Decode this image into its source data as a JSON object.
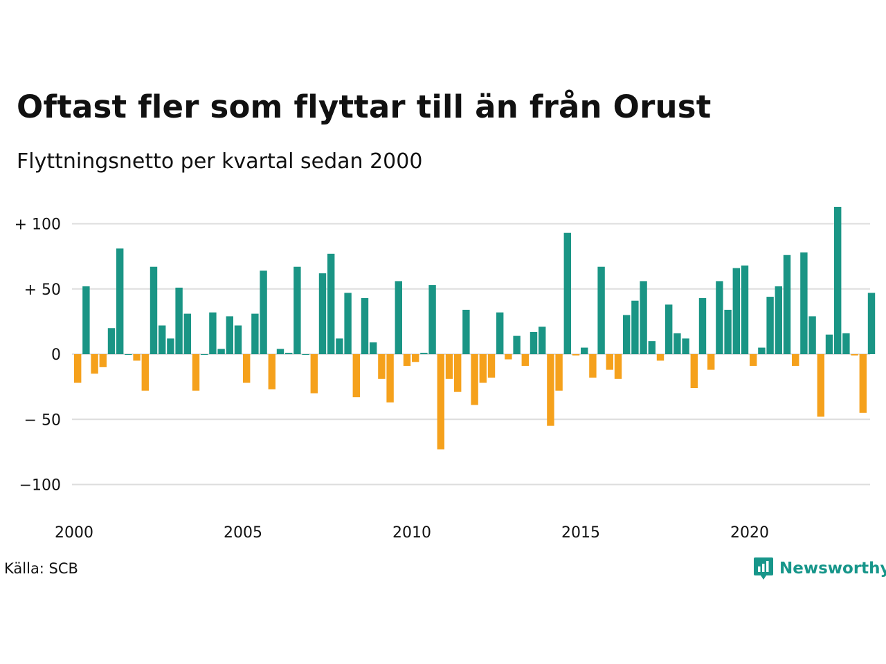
{
  "chart_data": {
    "type": "bar",
    "title": "Oftast fler som flyttar till än från Orust",
    "subtitle": "Flyttningsnetto per kvartal sedan 2000",
    "source": "Källa: SCB",
    "y_ticks": [
      {
        "value": 100,
        "label": "+ 100"
      },
      {
        "value": 50,
        "label": "+  50"
      },
      {
        "value": 0,
        "label": "0"
      },
      {
        "value": -50,
        "label": "− 50"
      },
      {
        "value": -100,
        "label": "−100"
      }
    ],
    "x_ticks": [
      "2000",
      "2005",
      "2010",
      "2015",
      "2020"
    ],
    "ylim": [
      -100,
      100
    ],
    "grid": true,
    "start_year": 2000,
    "colors": {
      "positive": "#1a9585",
      "negative": "#f5a11c",
      "grid": "#dddddd"
    },
    "values": [
      -22,
      52,
      -15,
      -10,
      20,
      81,
      0,
      -5,
      -28,
      67,
      22,
      12,
      51,
      31,
      -28,
      0,
      32,
      4,
      29,
      22,
      -22,
      31,
      64,
      -27,
      4,
      1,
      67,
      0,
      -30,
      62,
      77,
      12,
      47,
      -33,
      43,
      9,
      -19,
      -37,
      56,
      -9,
      -6,
      1,
      53,
      -73,
      -19,
      -29,
      34,
      -39,
      -22,
      -18,
      32,
      -4,
      14,
      -9,
      17,
      21,
      -55,
      -28,
      93,
      -1,
      5,
      -18,
      67,
      -12,
      -19,
      30,
      41,
      56,
      10,
      -5,
      38,
      16,
      12,
      -26,
      43,
      -12,
      56,
      34,
      66,
      68,
      -9,
      5,
      44,
      52,
      76,
      -9,
      78,
      29,
      -48,
      15,
      113,
      16,
      -1,
      -45,
      47
    ]
  },
  "branding": {
    "logo_text": "Newsworthy",
    "logo_icon": "bar-chart-speech-bubble-icon"
  }
}
